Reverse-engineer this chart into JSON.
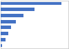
{
  "values": [
    18040,
    9920,
    6760,
    4480,
    3120,
    2320,
    1440,
    480
  ],
  "bar_color": "#4472c4",
  "background_color": "#ffffff",
  "plot_bg_color": "#ffffff",
  "xlim": [
    0,
    20000
  ],
  "bar_height": 0.55,
  "grid_color": "#d9d9d9",
  "border_color": "#c0c0c0",
  "grid_lw": 0.5
}
